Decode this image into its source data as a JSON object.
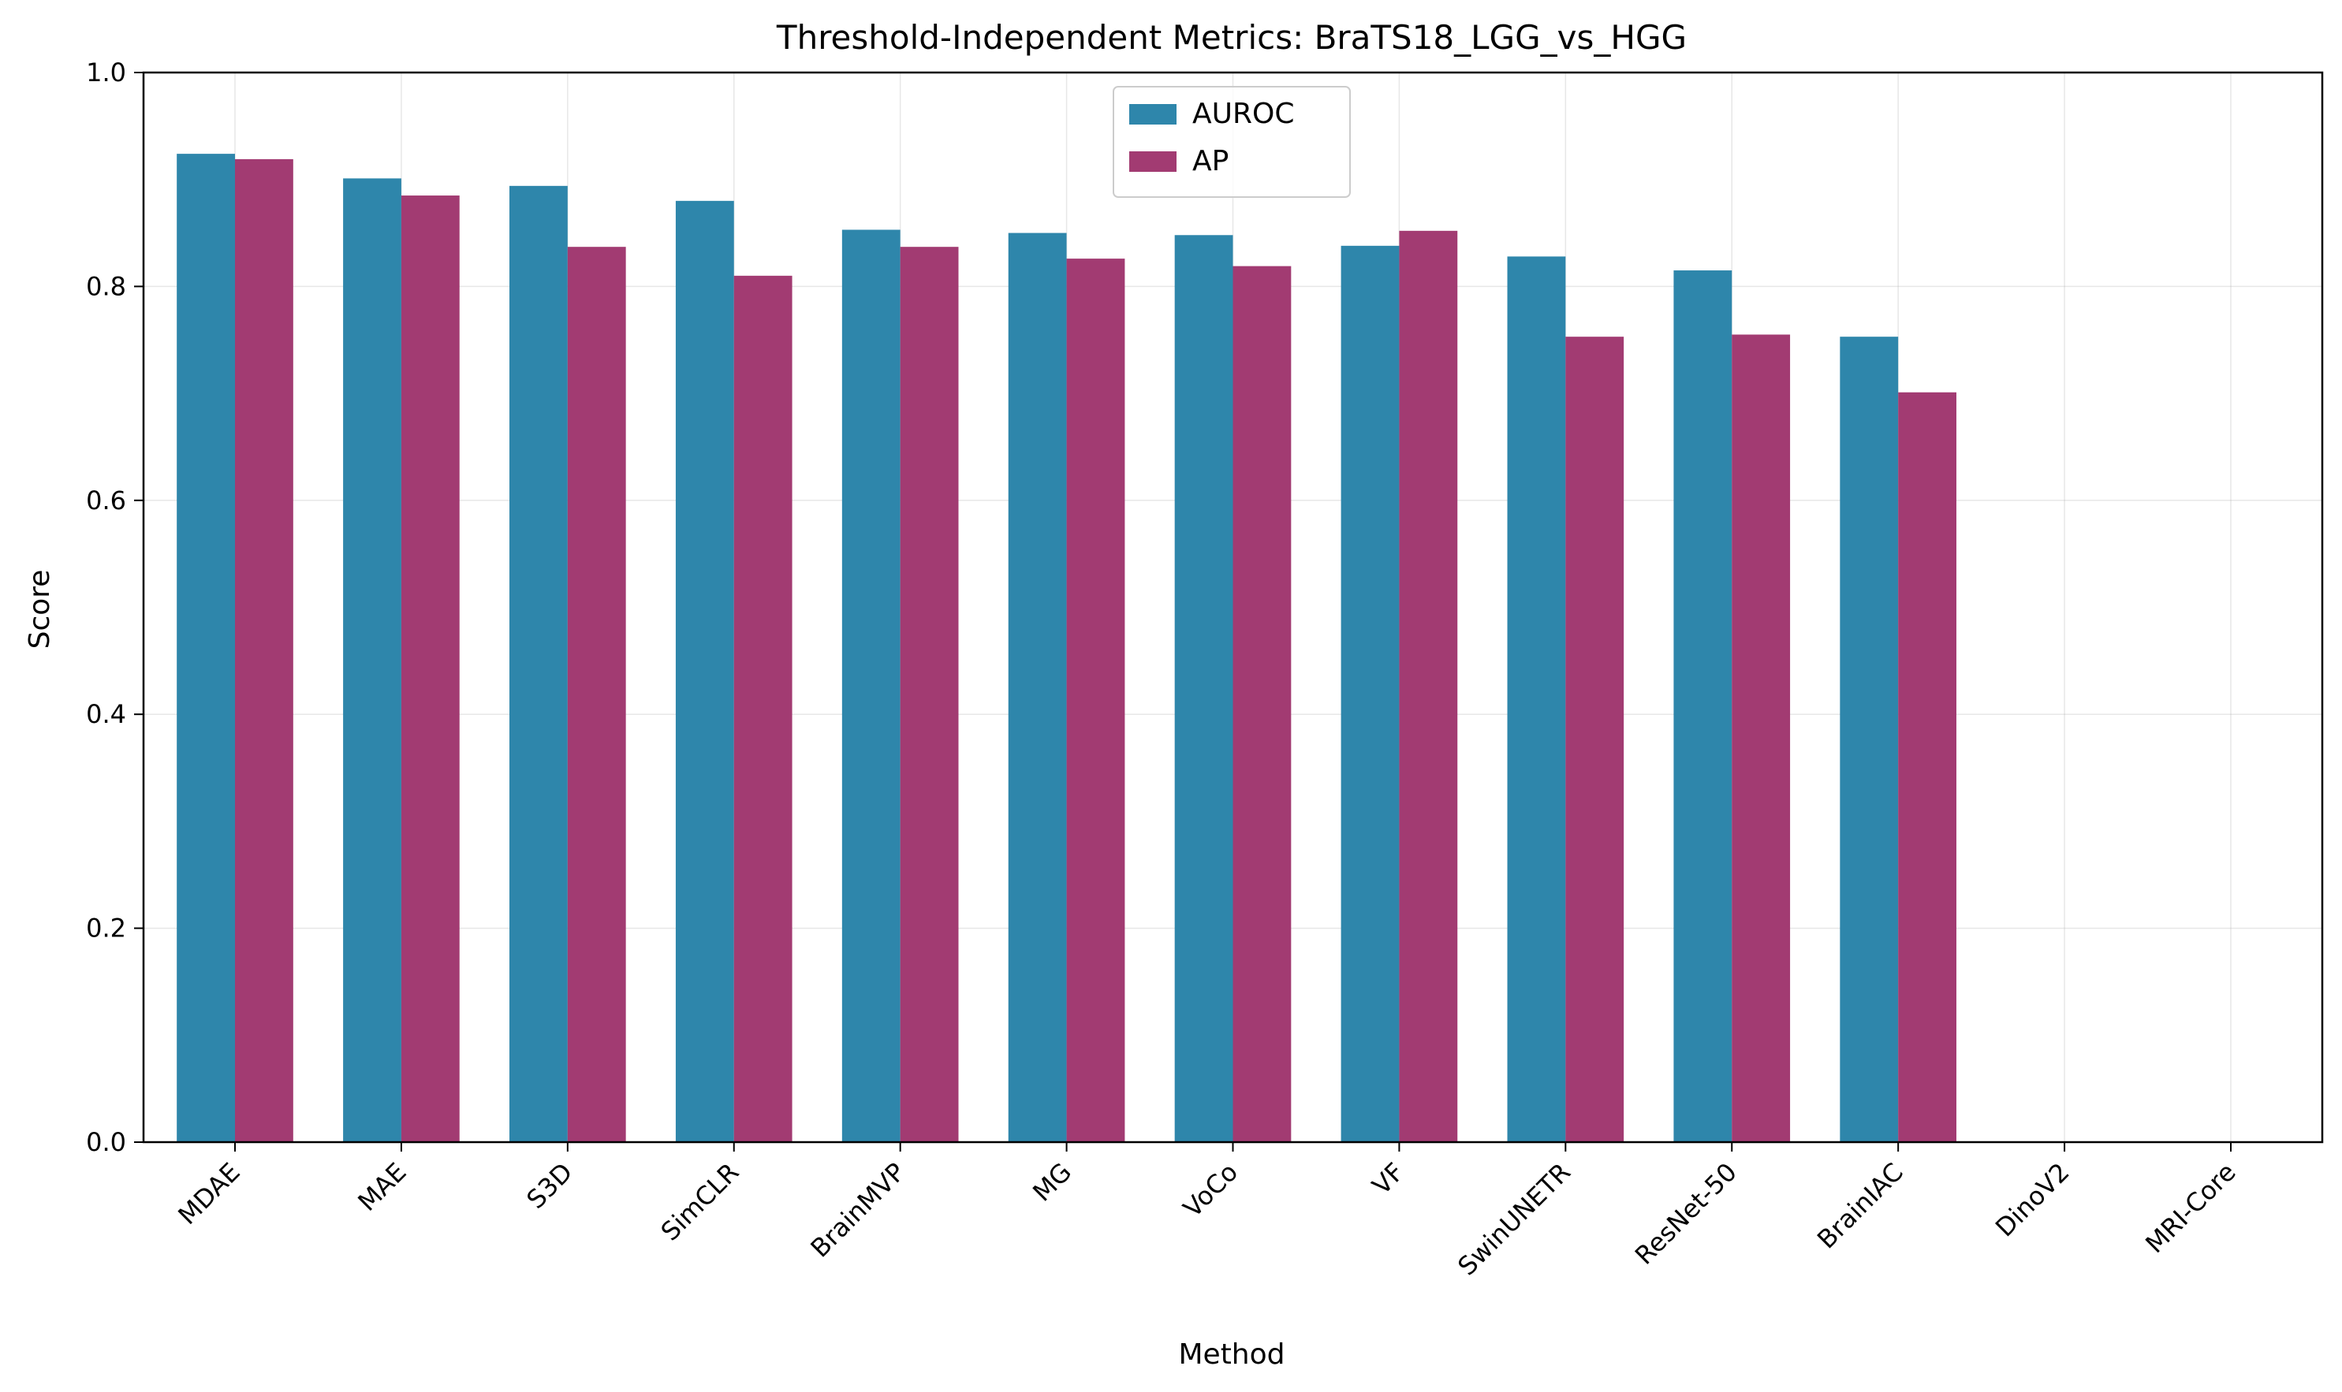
{
  "chart_data": {
    "type": "bar",
    "title": "Threshold-Independent Metrics: BraTS18_LGG_vs_HGG",
    "xlabel": "Method",
    "ylabel": "Score",
    "ylim": [
      0,
      1.0
    ],
    "yticks": [
      "0.0",
      "0.2",
      "0.4",
      "0.6",
      "0.8",
      "1.0"
    ],
    "grid": true,
    "legend_position": "top-center",
    "categories": [
      "MDAE",
      "MAE",
      "S3D",
      "SimCLR",
      "BrainMVP",
      "MG",
      "VoCo",
      "VF",
      "SwinUNETR",
      "ResNet-50",
      "BrainIAC",
      "DinoV2",
      "MRI-Core"
    ],
    "series": [
      {
        "name": "AUROC",
        "color": "#2e86ab",
        "values": [
          0.924,
          0.901,
          0.894,
          0.88,
          0.853,
          0.85,
          0.848,
          0.838,
          0.828,
          0.815,
          0.753,
          null,
          null
        ]
      },
      {
        "name": "AP",
        "color": "#a23b72",
        "values": [
          0.919,
          0.885,
          0.837,
          0.81,
          0.837,
          0.826,
          0.819,
          0.852,
          0.753,
          0.755,
          0.701,
          null,
          null
        ]
      }
    ]
  }
}
